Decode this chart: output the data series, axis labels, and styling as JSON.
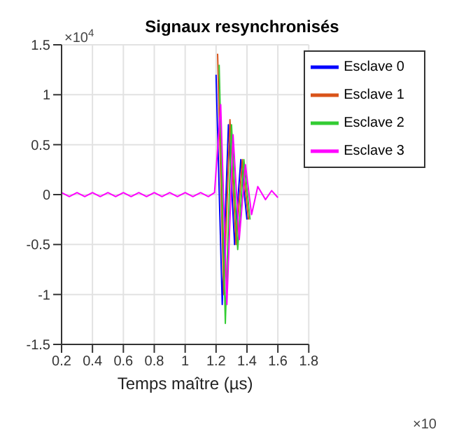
{
  "chart_data": {
    "type": "line",
    "title": "Signaux resynchronisés",
    "xlabel": "Temps maître (µs)",
    "annotations": [
      "×10$^{4}$",
      "×10"
    ],
    "series": [
      {
        "name": "Esclave 0",
        "color": "#0000ff",
        "x": [
          1.2,
          1.24,
          1.28,
          1.32,
          1.36,
          1.4
        ],
        "values": [
          1.2,
          -1.1,
          0.7,
          -0.5,
          0.35,
          -0.25
        ]
      },
      {
        "name": "Esclave 1",
        "color": "#d95319",
        "x": [
          1.21,
          1.25,
          1.29,
          1.33,
          1.37,
          1.41
        ],
        "values": [
          1.41,
          -1.0,
          0.75,
          -0.5,
          0.35,
          -0.25
        ]
      },
      {
        "name": "Esclave 2",
        "color": "#33cc33",
        "x": [
          1.22,
          1.26,
          1.3,
          1.34,
          1.38,
          1.42
        ],
        "values": [
          1.3,
          -1.29,
          0.7,
          -0.55,
          0.35,
          -0.25
        ]
      },
      {
        "name": "Esclave 3",
        "color": "#ff00ff",
        "x": [
          0.2,
          0.25,
          0.3,
          0.35,
          0.4,
          0.45,
          0.5,
          0.55,
          0.6,
          0.65,
          0.7,
          0.75,
          0.8,
          0.85,
          0.9,
          0.95,
          1.0,
          1.05,
          1.1,
          1.15,
          1.19,
          1.23,
          1.27,
          1.31,
          1.35,
          1.39,
          1.43,
          1.47,
          1.52,
          1.56,
          1.6
        ],
        "values": [
          0.02,
          -0.02,
          0.02,
          -0.02,
          0.02,
          -0.02,
          0.02,
          -0.02,
          0.02,
          -0.02,
          0.02,
          -0.02,
          0.02,
          -0.02,
          0.02,
          -0.02,
          0.02,
          -0.02,
          0.02,
          -0.02,
          0.02,
          0.9,
          -1.1,
          0.6,
          -0.45,
          0.3,
          -0.2,
          0.08,
          -0.05,
          0.04,
          -0.03
        ]
      }
    ],
    "xlim": [
      0.2,
      1.8
    ],
    "xticks": [
      0.2,
      0.4,
      0.6,
      0.8,
      1,
      1.2,
      1.4,
      1.6,
      1.8
    ],
    "ylim": [
      -1.5,
      1.5
    ],
    "yticks": [
      -1.5,
      -1,
      -0.5,
      0,
      0.5,
      1,
      1.5
    ],
    "grid": true,
    "legend": "top right",
    "marker": "none",
    "line_style": "solid"
  }
}
